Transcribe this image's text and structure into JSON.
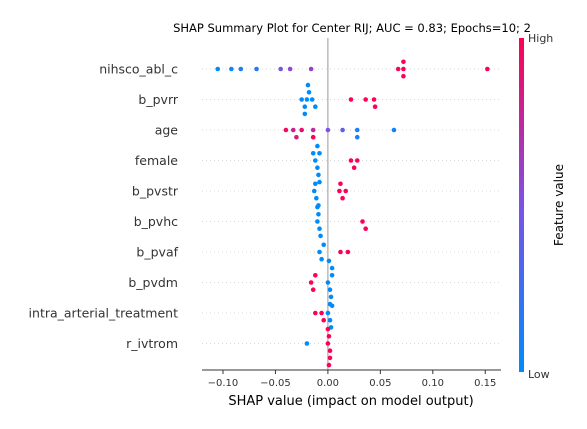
{
  "chart_data": {
    "type": "scatter",
    "title": "SHAP Summary Plot for Center RIJ; AUC = 0.83; Epochs=10; 2",
    "xlabel": "SHAP value (impact on model output)",
    "ylabel": "",
    "xlim": [
      -0.12,
      0.165
    ],
    "xticks": [
      -0.1,
      -0.05,
      0.0,
      0.05,
      0.1,
      0.15
    ],
    "xtick_labels": [
      "−0.10",
      "−0.05",
      "0.00",
      "0.05",
      "0.10",
      "0.15"
    ],
    "grid": false,
    "colorbar": {
      "label": "Feature value",
      "high_label": "High",
      "low_label": "Low",
      "low_color": "#008bfb",
      "mid_color": "#7c52e6",
      "high_color": "#ff0052"
    },
    "features": [
      {
        "name": "nihsco_abl_c",
        "points": [
          {
            "x": -0.105,
            "v": 0.0
          },
          {
            "x": -0.092,
            "v": 0.05
          },
          {
            "x": -0.083,
            "v": 0.1
          },
          {
            "x": -0.068,
            "v": 0.15
          },
          {
            "x": -0.045,
            "v": 0.45
          },
          {
            "x": -0.036,
            "v": 0.55
          },
          {
            "x": -0.016,
            "v": 0.6
          },
          {
            "x": 0.067,
            "v": 0.95
          },
          {
            "x": 0.072,
            "v": 1.0
          },
          {
            "x": 0.072,
            "v": 1.0
          },
          {
            "x": 0.072,
            "v": 1.0
          },
          {
            "x": 0.152,
            "v": 1.0
          }
        ]
      },
      {
        "name": "b_pvrr",
        "points": [
          {
            "x": -0.025,
            "v": 0.0
          },
          {
            "x": -0.022,
            "v": 0.0
          },
          {
            "x": -0.02,
            "v": 0.0
          },
          {
            "x": -0.018,
            "v": 0.0
          },
          {
            "x": -0.015,
            "v": 0.0
          },
          {
            "x": -0.012,
            "v": 0.0
          },
          {
            "x": -0.022,
            "v": 0.0
          },
          {
            "x": -0.019,
            "v": 0.0
          },
          {
            "x": 0.022,
            "v": 1.0
          },
          {
            "x": 0.036,
            "v": 1.0
          },
          {
            "x": 0.044,
            "v": 1.0
          },
          {
            "x": 0.045,
            "v": 1.0
          }
        ]
      },
      {
        "name": "age",
        "points": [
          {
            "x": -0.04,
            "v": 0.95
          },
          {
            "x": -0.033,
            "v": 0.8
          },
          {
            "x": -0.03,
            "v": 0.85
          },
          {
            "x": -0.025,
            "v": 0.9
          },
          {
            "x": -0.014,
            "v": 0.75
          },
          {
            "x": -0.014,
            "v": 1.0
          },
          {
            "x": 0.0,
            "v": 0.5
          },
          {
            "x": 0.014,
            "v": 0.4
          },
          {
            "x": 0.028,
            "v": 0.1
          },
          {
            "x": 0.028,
            "v": 0.1
          },
          {
            "x": 0.063,
            "v": 0.05
          }
        ]
      },
      {
        "name": "female",
        "points": [
          {
            "x": -0.012,
            "v": 0.0
          },
          {
            "x": -0.01,
            "v": 0.0
          },
          {
            "x": -0.008,
            "v": 0.0
          },
          {
            "x": -0.014,
            "v": 0.0
          },
          {
            "x": -0.009,
            "v": 0.0
          },
          {
            "x": -0.01,
            "v": 0.0
          },
          {
            "x": -0.008,
            "v": 0.0
          },
          {
            "x": 0.022,
            "v": 1.0
          },
          {
            "x": 0.025,
            "v": 1.0
          },
          {
            "x": 0.028,
            "v": 1.0
          }
        ]
      },
      {
        "name": "b_pvstr",
        "points": [
          {
            "x": -0.013,
            "v": 0.0
          },
          {
            "x": -0.011,
            "v": 0.0
          },
          {
            "x": -0.012,
            "v": 0.0
          },
          {
            "x": -0.009,
            "v": 0.0
          },
          {
            "x": 0.011,
            "v": 1.0
          },
          {
            "x": 0.014,
            "v": 1.0
          },
          {
            "x": 0.017,
            "v": 1.0
          },
          {
            "x": 0.012,
            "v": 1.0
          }
        ]
      },
      {
        "name": "b_pvhc",
        "points": [
          {
            "x": -0.01,
            "v": 0.0
          },
          {
            "x": -0.008,
            "v": 0.0
          },
          {
            "x": -0.009,
            "v": 0.0
          },
          {
            "x": -0.007,
            "v": 0.0
          },
          {
            "x": -0.01,
            "v": 0.0
          },
          {
            "x": 0.033,
            "v": 1.0
          },
          {
            "x": 0.036,
            "v": 1.0
          }
        ]
      },
      {
        "name": "b_pvaf",
        "points": [
          {
            "x": -0.008,
            "v": 0.0
          },
          {
            "x": -0.006,
            "v": 0.0
          },
          {
            "x": -0.004,
            "v": 0.0
          },
          {
            "x": 0.012,
            "v": 1.0
          },
          {
            "x": 0.019,
            "v": 1.0
          }
        ]
      },
      {
        "name": "b_pvdm",
        "points": [
          {
            "x": -0.016,
            "v": 1.0
          },
          {
            "x": -0.014,
            "v": 1.0
          },
          {
            "x": -0.012,
            "v": 1.0
          },
          {
            "x": 0.0,
            "v": 0.0
          },
          {
            "x": 0.002,
            "v": 0.0
          },
          {
            "x": 0.004,
            "v": 0.0
          },
          {
            "x": 0.003,
            "v": 0.0
          },
          {
            "x": 0.004,
            "v": 0.0
          },
          {
            "x": 0.002,
            "v": 0.0
          },
          {
            "x": 0.001,
            "v": 0.0
          }
        ]
      },
      {
        "name": "intra_arterial_treatment",
        "points": [
          {
            "x": -0.012,
            "v": 1.0
          },
          {
            "x": -0.006,
            "v": 1.0
          },
          {
            "x": -0.004,
            "v": 1.0
          },
          {
            "x": 0.0,
            "v": 0.0
          },
          {
            "x": 0.002,
            "v": 0.0
          },
          {
            "x": 0.004,
            "v": 0.0
          },
          {
            "x": 0.003,
            "v": 0.0
          }
        ]
      },
      {
        "name": "r_ivtrom",
        "points": [
          {
            "x": -0.02,
            "v": 0.0
          },
          {
            "x": 0.0,
            "v": 1.0
          },
          {
            "x": 0.002,
            "v": 1.0
          },
          {
            "x": 0.001,
            "v": 1.0
          },
          {
            "x": 0.002,
            "v": 1.0
          },
          {
            "x": 0.0,
            "v": 1.0
          },
          {
            "x": 0.001,
            "v": 1.0
          }
        ]
      }
    ]
  }
}
